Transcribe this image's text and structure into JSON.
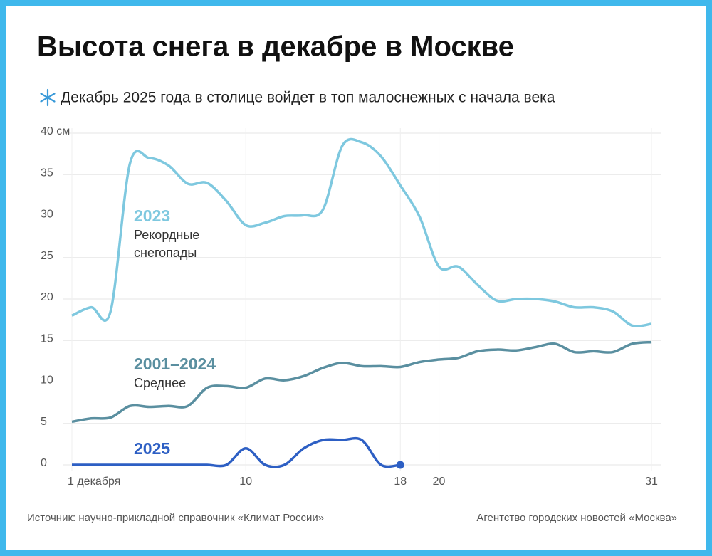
{
  "chart_data": {
    "type": "line",
    "title": "Высота снега в декабре в Москве",
    "subtitle": "Декабрь 2025 года в столице войдет в топ малоснежных с начала века",
    "source": "Источник: научно-прикладной справочник «Климат России»",
    "credit": "Агентство городских новостей «Москва»",
    "x": [
      1,
      2,
      3,
      4,
      5,
      6,
      7,
      8,
      9,
      10,
      11,
      12,
      13,
      14,
      15,
      16,
      17,
      18,
      19,
      20,
      21,
      22,
      23,
      24,
      25,
      26,
      27,
      28,
      29,
      30,
      31
    ],
    "series": [
      {
        "name": "2023",
        "description": [
          "Рекордные",
          "снегопады"
        ],
        "color": "#7ec8df",
        "values": [
          18.0,
          19.0,
          18.5,
          36.3,
          37.0,
          36.1,
          33.9,
          34.0,
          31.8,
          28.9,
          29.2,
          30.0,
          30.1,
          30.8,
          38.5,
          38.9,
          37.2,
          33.7,
          29.9,
          23.9,
          23.9,
          21.7,
          19.8,
          20.0,
          20.0,
          19.7,
          19.0,
          19.0,
          18.5,
          16.8,
          17.0
        ]
      },
      {
        "name": "2001–2024",
        "description": [
          "Среднее"
        ],
        "color": "#5a8fa0",
        "values": [
          5.2,
          5.6,
          5.7,
          7.1,
          7.0,
          7.1,
          7.1,
          9.3,
          9.5,
          9.3,
          10.4,
          10.2,
          10.7,
          11.7,
          12.3,
          11.9,
          11.9,
          11.8,
          12.4,
          12.7,
          12.9,
          13.7,
          13.9,
          13.8,
          14.2,
          14.6,
          13.6,
          13.7,
          13.6,
          14.6,
          14.8
        ]
      },
      {
        "name": "2025",
        "color": "#2d5fc4",
        "values": [
          0,
          0,
          0,
          0,
          0,
          0,
          0,
          0,
          0,
          2,
          0,
          0,
          2,
          3,
          3,
          3,
          0,
          0,
          null,
          null,
          null,
          null,
          null,
          null,
          null,
          null,
          null,
          null,
          null,
          null,
          null
        ]
      }
    ],
    "xlim": [
      1,
      31
    ],
    "xticks": [
      {
        "value": 1,
        "label": "1 декабря"
      },
      10,
      18,
      20,
      31
    ],
    "ylim": [
      0,
      40
    ],
    "yticks": [
      0,
      5,
      10,
      15,
      20,
      25,
      30,
      35,
      {
        "value": 40,
        "label": "40 см"
      }
    ],
    "grid": true
  }
}
